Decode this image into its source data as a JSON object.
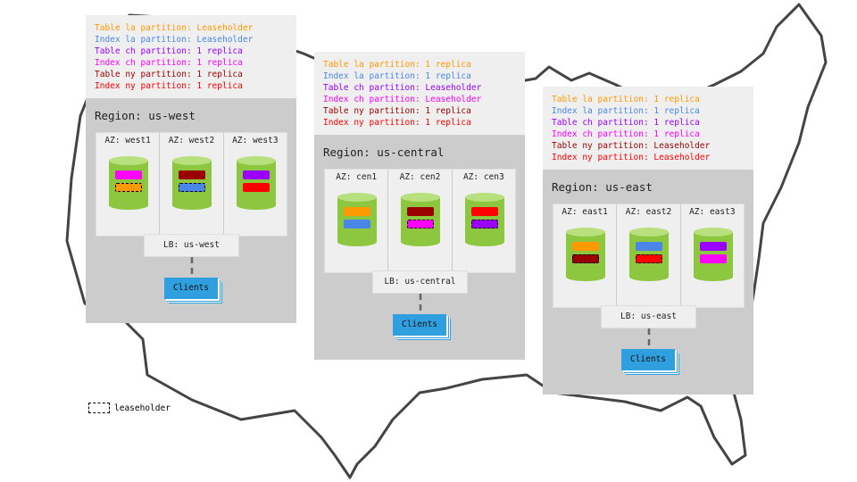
{
  "colors": {
    "la_table": "#ff9900",
    "la_index": "#4a86e8",
    "ch_table": "#9900ff",
    "ch_index": "#ff00ff",
    "ny_table": "#990000",
    "ny_index": "#ff0000",
    "cylinder": "#8dc63f",
    "cylinder_top": "#b8e07f",
    "clients": "#2f9fdf"
  },
  "legend_label": "leaseholder",
  "regions": [
    {
      "name": "Region: us-west",
      "lb": "LB: us-west",
      "clients": "Clients",
      "lines": [
        {
          "text": "Table la partition: Leaseholder",
          "color": "#ff9900"
        },
        {
          "text": "Index la partition: Leaseholder",
          "color": "#4a86e8"
        },
        {
          "text": "Table ch partition: 1 replica",
          "color": "#9900ff"
        },
        {
          "text": "Index ch partition: 1 replica",
          "color": "#ff00ff"
        },
        {
          "text": "Table ny partition: 1 replica",
          "color": "#990000"
        },
        {
          "text": "Index ny partition: 1 replica",
          "color": "#ff0000"
        }
      ],
      "azs": [
        {
          "name": "AZ: west1",
          "replicas": [
            {
              "color": "#ff00ff",
              "leaseholder": false
            },
            {
              "color": "#ff9900",
              "leaseholder": true
            }
          ]
        },
        {
          "name": "AZ: west2",
          "replicas": [
            {
              "color": "#990000",
              "leaseholder": false
            },
            {
              "color": "#4a86e8",
              "leaseholder": true
            }
          ]
        },
        {
          "name": "AZ: west3",
          "replicas": [
            {
              "color": "#9900ff",
              "leaseholder": false
            },
            {
              "color": "#ff0000",
              "leaseholder": false
            }
          ]
        }
      ]
    },
    {
      "name": "Region: us-central",
      "lb": "LB: us-central",
      "clients": "Clients",
      "lines": [
        {
          "text": "Table la partition: 1 replica",
          "color": "#ff9900"
        },
        {
          "text": "Index la partition: 1 replica",
          "color": "#4a86e8"
        },
        {
          "text": "Table ch partition: Leaseholder",
          "color": "#9900ff"
        },
        {
          "text": "Index ch partition: Leaseholder",
          "color": "#ff00ff"
        },
        {
          "text": "Table ny partition: 1 replica",
          "color": "#990000"
        },
        {
          "text": "Index ny partition: 1 replica",
          "color": "#ff0000"
        }
      ],
      "azs": [
        {
          "name": "AZ: cen1",
          "replicas": [
            {
              "color": "#ff9900",
              "leaseholder": false
            },
            {
              "color": "#4a86e8",
              "leaseholder": false
            }
          ]
        },
        {
          "name": "AZ: cen2",
          "replicas": [
            {
              "color": "#990000",
              "leaseholder": false
            },
            {
              "color": "#ff00ff",
              "leaseholder": true
            }
          ]
        },
        {
          "name": "AZ: cen3",
          "replicas": [
            {
              "color": "#ff0000",
              "leaseholder": false
            },
            {
              "color": "#9900ff",
              "leaseholder": true
            }
          ]
        }
      ]
    },
    {
      "name": "Region: us-east",
      "lb": "LB: us-east",
      "clients": "Clients",
      "lines": [
        {
          "text": "Table la partition: 1 replica",
          "color": "#ff9900"
        },
        {
          "text": "Index la partition: 1 replica",
          "color": "#4a86e8"
        },
        {
          "text": "Table ch partition: 1 replica",
          "color": "#9900ff"
        },
        {
          "text": "Index ch partition: 1 replica",
          "color": "#ff00ff"
        },
        {
          "text": "Table ny partition: Leaseholder",
          "color": "#990000"
        },
        {
          "text": "Index ny partition: Leaseholder",
          "color": "#ff0000"
        }
      ],
      "azs": [
        {
          "name": "AZ: east1",
          "replicas": [
            {
              "color": "#ff9900",
              "leaseholder": false
            },
            {
              "color": "#990000",
              "leaseholder": true
            }
          ]
        },
        {
          "name": "AZ: east2",
          "replicas": [
            {
              "color": "#4a86e8",
              "leaseholder": false
            },
            {
              "color": "#ff0000",
              "leaseholder": true
            }
          ]
        },
        {
          "name": "AZ: east3",
          "replicas": [
            {
              "color": "#9900ff",
              "leaseholder": false
            },
            {
              "color": "#ff00ff",
              "leaseholder": false
            }
          ]
        }
      ]
    }
  ]
}
